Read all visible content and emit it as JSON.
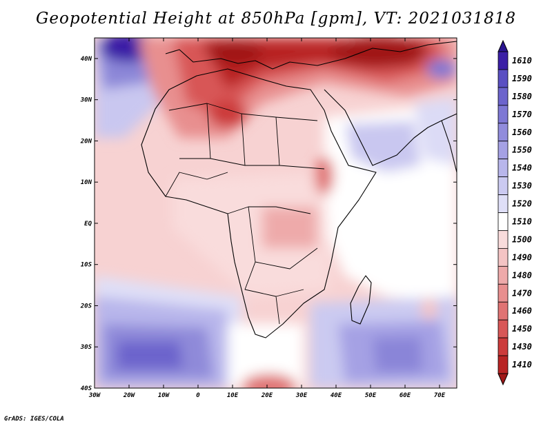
{
  "title": "Geopotential Height at 850hPa [gpm], VT: 2021031818",
  "credit": "GrADS: IGES/COLA",
  "map": {
    "lon_range": [
      -30,
      75
    ],
    "lat_range": [
      -40,
      45
    ],
    "lon_ticks": [
      {
        "value": -30,
        "label": "30W"
      },
      {
        "value": -20,
        "label": "20W"
      },
      {
        "value": -10,
        "label": "10W"
      },
      {
        "value": 0,
        "label": "0"
      },
      {
        "value": 10,
        "label": "10E"
      },
      {
        "value": 20,
        "label": "20E"
      },
      {
        "value": 30,
        "label": "30E"
      },
      {
        "value": 40,
        "label": "40E"
      },
      {
        "value": 50,
        "label": "50E"
      },
      {
        "value": 60,
        "label": "60E"
      },
      {
        "value": 70,
        "label": "70E"
      }
    ],
    "lat_ticks": [
      {
        "value": 40,
        "label": "40N"
      },
      {
        "value": 30,
        "label": "30N"
      },
      {
        "value": 20,
        "label": "20N"
      },
      {
        "value": 10,
        "label": "10N"
      },
      {
        "value": 0,
        "label": "EQ"
      },
      {
        "value": -10,
        "label": "10S"
      },
      {
        "value": -20,
        "label": "20S"
      },
      {
        "value": -30,
        "label": "30S"
      },
      {
        "value": -40,
        "label": "40S"
      }
    ]
  },
  "colorbar": {
    "levels": [
      {
        "label": "1610",
        "color": "#3b1fa6"
      },
      {
        "label": "1590",
        "color": "#5a4fc2"
      },
      {
        "label": "1580",
        "color": "#6c64cc"
      },
      {
        "label": "1570",
        "color": "#7e78d4"
      },
      {
        "label": "1560",
        "color": "#918cdc"
      },
      {
        "label": "1550",
        "color": "#a5a1e4"
      },
      {
        "label": "1540",
        "color": "#b8b6eb"
      },
      {
        "label": "1530",
        "color": "#cbcaf1"
      },
      {
        "label": "1520",
        "color": "#dfdff7"
      },
      {
        "label": "1510",
        "color": "#ffffff"
      },
      {
        "label": "1500",
        "color": "#f9dcdc"
      },
      {
        "label": "1490",
        "color": "#f4c4c4"
      },
      {
        "label": "1480",
        "color": "#eeaaaa"
      },
      {
        "label": "1470",
        "color": "#e88f8f"
      },
      {
        "label": "1460",
        "color": "#e07373"
      },
      {
        "label": "1450",
        "color": "#d85757"
      },
      {
        "label": "1430",
        "color": "#cc3b3b"
      },
      {
        "label": "1410",
        "color": "#b82424"
      }
    ],
    "top_arrow_color": "#2a1590",
    "bottom_arrow_color": "#a01818"
  }
}
